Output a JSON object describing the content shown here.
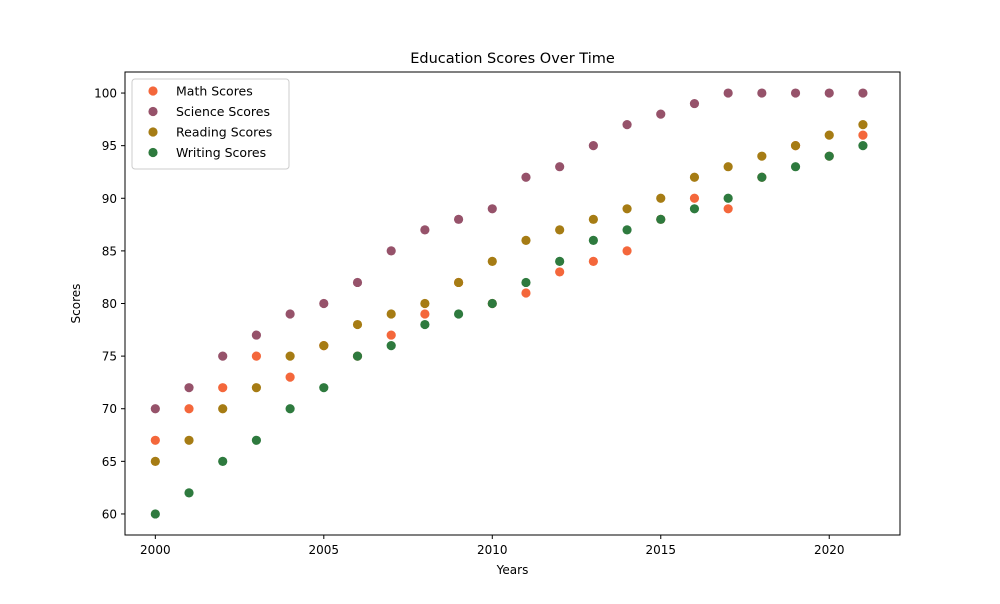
{
  "chart_data": {
    "type": "scatter",
    "title": "Education Scores Over Time",
    "xlabel": "Years",
    "ylabel": "Scores",
    "xlim": [
      1999.1,
      2022.1
    ],
    "ylim": [
      58.0,
      102.0
    ],
    "xticks": [
      2000,
      2005,
      2010,
      2015,
      2020
    ],
    "yticks": [
      60,
      65,
      70,
      75,
      80,
      85,
      90,
      95,
      100
    ],
    "grid": false,
    "legend_position": "upper-left",
    "x": [
      2000,
      2001,
      2002,
      2003,
      2004,
      2005,
      2006,
      2007,
      2008,
      2009,
      2010,
      2011,
      2012,
      2013,
      2014,
      2015,
      2016,
      2017,
      2018,
      2019,
      2020,
      2021
    ],
    "series": [
      {
        "name": "Math Scores",
        "color": "#f4673b",
        "values": [
          67,
          70,
          72,
          75,
          73,
          76,
          75,
          77,
          79,
          82,
          80,
          81,
          83,
          84,
          85,
          88,
          90,
          89,
          92,
          95,
          94,
          96
        ]
      },
      {
        "name": "Science Scores",
        "color": "#96526a",
        "values": [
          70,
          72,
          75,
          77,
          79,
          80,
          82,
          85,
          87,
          88,
          89,
          92,
          93,
          95,
          97,
          98,
          99,
          100,
          100,
          100,
          100,
          100
        ]
      },
      {
        "name": "Reading Scores",
        "color": "#a67c14",
        "values": [
          65,
          67,
          70,
          72,
          75,
          76,
          78,
          79,
          80,
          82,
          84,
          86,
          87,
          88,
          89,
          90,
          92,
          93,
          94,
          95,
          96,
          97
        ]
      },
      {
        "name": "Writing Scores",
        "color": "#2e7a3e",
        "values": [
          60,
          62,
          65,
          67,
          70,
          72,
          75,
          76,
          78,
          79,
          80,
          82,
          84,
          86,
          87,
          88,
          89,
          90,
          92,
          93,
          94,
          95
        ]
      }
    ]
  }
}
